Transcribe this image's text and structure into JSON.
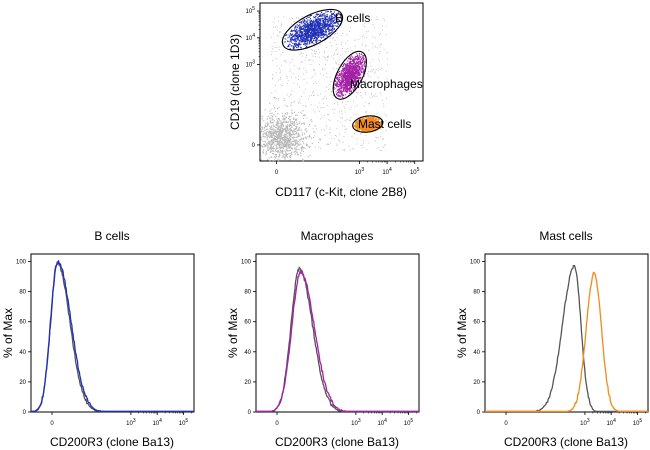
{
  "colors": {
    "b_cells": "#1f2fb8",
    "macrophages": "#a421a6",
    "mast_cells": "#f28a1c",
    "control": "#555555",
    "background_events": "#b8b8b8"
  },
  "chart_data": [
    {
      "type": "scatter",
      "title": "",
      "xlabel": "CD117 (c-Kit, clone 2B8)",
      "ylabel": "CD19 (clone 1D3)",
      "x_ticks": [
        {
          "label": "0",
          "value": 0
        },
        {
          "label": "10",
          "sup": "3",
          "value": 3
        },
        {
          "label": "10",
          "sup": "4",
          "value": 4
        },
        {
          "label": "10",
          "sup": "5",
          "value": 5
        }
      ],
      "y_ticks": [
        {
          "label": "0",
          "value": 0
        },
        {
          "label": "10",
          "sup": "3",
          "value": 3
        },
        {
          "label": "10",
          "sup": "4",
          "value": 4
        },
        {
          "label": "10",
          "sup": "5",
          "value": 5
        }
      ],
      "xlim": [
        -0.6,
        5.3
      ],
      "ylim": [
        -0.6,
        5.3
      ],
      "gates": [
        {
          "name": "B cells",
          "label": "B cells",
          "color": "#1f2fb8",
          "cx": 1.3,
          "cy": 4.3,
          "rx": 1.2,
          "ry": 0.55,
          "angle_deg": 28
        },
        {
          "name": "Macrophages",
          "label": "Macrophages",
          "color": "#a421a6",
          "cx": 2.65,
          "cy": 2.6,
          "rx": 0.95,
          "ry": 0.47,
          "angle_deg": 62
        },
        {
          "name": "Mast cells",
          "label": "Mast cells",
          "color": "#f28a1c",
          "cx": 3.3,
          "cy": 0.78,
          "rx": 0.55,
          "ry": 0.3,
          "angle_deg": 8
        }
      ],
      "background_cluster": {
        "cx": 0.15,
        "cy": 0.3,
        "sx": 0.45,
        "sy": 0.45
      }
    },
    {
      "type": "line",
      "title": "B cells",
      "xlabel": "CD200R3 (clone Ba13)",
      "ylabel": "% of Max",
      "xlim": [
        -0.8,
        5.4
      ],
      "ylim": [
        0,
        105
      ],
      "y_ticks": [
        0,
        20,
        40,
        60,
        80,
        100
      ],
      "series": [
        {
          "name": "",
          "color": "#555555",
          "peak": 99,
          "center": 0.2,
          "left_width": 0.26,
          "right_width": 0.48
        },
        {
          "name": "",
          "color": "#1f2fb8",
          "peak": 100,
          "center": 0.22,
          "left_width": 0.27,
          "right_width": 0.5
        }
      ]
    },
    {
      "type": "line",
      "title": "Macrophages",
      "xlabel": "CD200R3 (clone Ba13)",
      "ylabel": "% of Max",
      "xlim": [
        -0.8,
        5.4
      ],
      "ylim": [
        0,
        105
      ],
      "y_ticks": [
        0,
        20,
        40,
        60,
        80,
        100
      ],
      "series": [
        {
          "name": "",
          "color": "#555555",
          "peak": 95,
          "center": 0.85,
          "left_width": 0.32,
          "right_width": 0.5
        },
        {
          "name": "",
          "color": "#a421a6",
          "peak": 93,
          "center": 0.9,
          "left_width": 0.34,
          "right_width": 0.52
        }
      ]
    },
    {
      "type": "line",
      "title": "Mast cells",
      "xlabel": "CD200R3 (clone Ba13)",
      "ylabel": "% of Max",
      "xlim": [
        -0.8,
        5.4
      ],
      "ylim": [
        0,
        105
      ],
      "y_ticks": [
        0,
        20,
        40,
        60,
        80,
        100
      ],
      "series": [
        {
          "name": "",
          "color": "#555555",
          "peak": 97,
          "center": 2.6,
          "left_width": 0.45,
          "right_width": 0.25
        },
        {
          "name": "",
          "color": "#f28a1c",
          "peak": 92,
          "center": 3.35,
          "left_width": 0.3,
          "right_width": 0.28
        }
      ]
    }
  ]
}
